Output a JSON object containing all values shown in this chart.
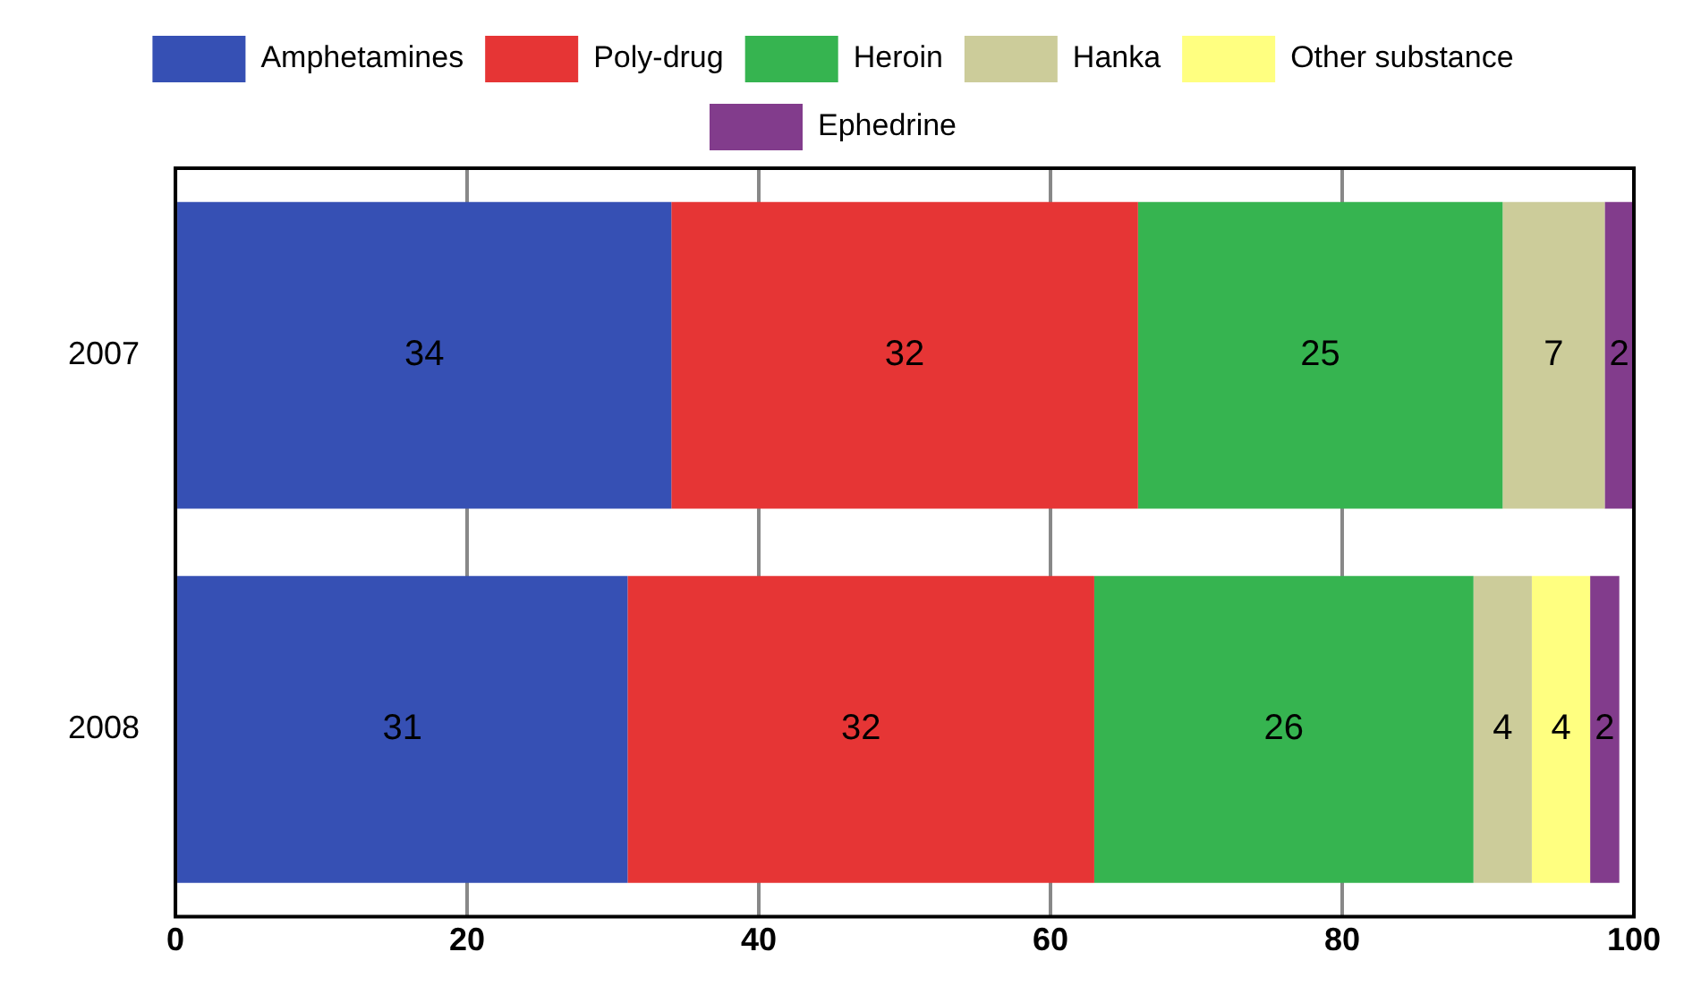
{
  "chart_data": {
    "type": "bar",
    "orientation": "horizontal",
    "stacked": true,
    "categories": [
      "2007",
      "2008"
    ],
    "series": [
      {
        "name": "Amphetamines",
        "color": "#3650b4",
        "values": [
          34,
          31
        ]
      },
      {
        "name": "Poly-drug",
        "color": "#e63535",
        "values": [
          32,
          32
        ]
      },
      {
        "name": "Heroin",
        "color": "#36b450",
        "values": [
          25,
          26
        ]
      },
      {
        "name": "Hanka",
        "color": "#cccc9a",
        "values": [
          7,
          4
        ]
      },
      {
        "name": "Other substance",
        "color": "#ffff80",
        "values": [
          null,
          4
        ]
      },
      {
        "name": "Ephedrine",
        "color": "#823c8c",
        "values": [
          2,
          2
        ]
      }
    ],
    "xlim": [
      0,
      100
    ],
    "xticks": [
      0,
      20,
      40,
      60,
      80,
      100
    ],
    "grid": "x",
    "legend": "top",
    "data_labels": true
  }
}
